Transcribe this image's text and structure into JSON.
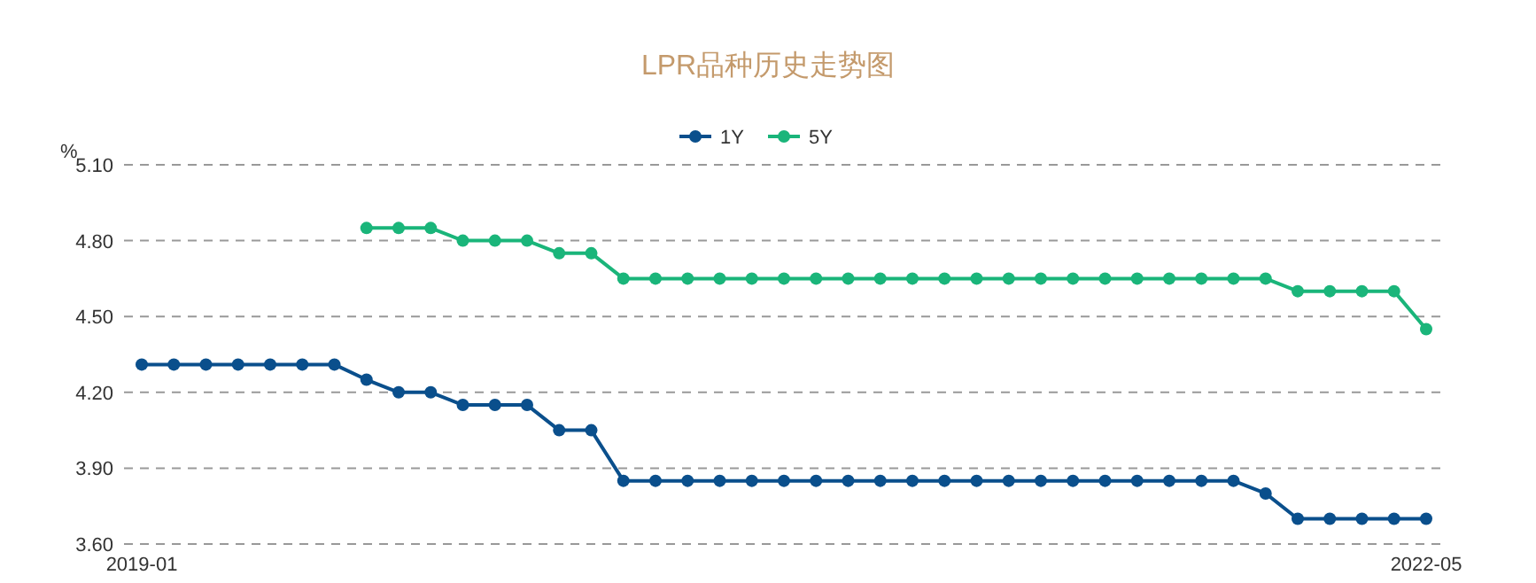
{
  "chart_data": {
    "type": "line",
    "title": "LPR品种历史走势图",
    "ylabel": "%",
    "categories": [
      "2019-01",
      null,
      null,
      null,
      null,
      null,
      null,
      null,
      null,
      null,
      null,
      null,
      null,
      null,
      null,
      null,
      null,
      null,
      null,
      null,
      null,
      null,
      null,
      null,
      null,
      null,
      null,
      null,
      null,
      null,
      null,
      null,
      null,
      null,
      null,
      null,
      null,
      null,
      null,
      null,
      "2022-05"
    ],
    "series": [
      {
        "name": "1Y",
        "color": "#0a4f8c",
        "values": [
          4.31,
          4.31,
          4.31,
          4.31,
          4.31,
          4.31,
          4.31,
          4.25,
          4.2,
          4.2,
          4.15,
          4.15,
          4.15,
          4.05,
          4.05,
          3.85,
          3.85,
          3.85,
          3.85,
          3.85,
          3.85,
          3.85,
          3.85,
          3.85,
          3.85,
          3.85,
          3.85,
          3.85,
          3.85,
          3.85,
          3.85,
          3.85,
          3.85,
          3.85,
          3.85,
          3.8,
          3.7,
          3.7,
          3.7,
          3.7,
          3.7
        ]
      },
      {
        "name": "5Y",
        "color": "#1ab57a",
        "values": [
          null,
          null,
          null,
          null,
          null,
          null,
          null,
          4.85,
          4.85,
          4.85,
          4.8,
          4.8,
          4.8,
          4.75,
          4.75,
          4.65,
          4.65,
          4.65,
          4.65,
          4.65,
          4.65,
          4.65,
          4.65,
          4.65,
          4.65,
          4.65,
          4.65,
          4.65,
          4.65,
          4.65,
          4.65,
          4.65,
          4.65,
          4.65,
          4.65,
          4.65,
          4.6,
          4.6,
          4.6,
          4.6,
          4.45
        ]
      }
    ],
    "ylim": [
      3.6,
      5.1
    ],
    "yticks": [
      {
        "value": 3.6,
        "label": "3.60"
      },
      {
        "value": 3.9,
        "label": "3.90"
      },
      {
        "value": 4.2,
        "label": "4.20"
      },
      {
        "value": 4.5,
        "label": "4.50"
      },
      {
        "value": 4.8,
        "label": "4.80"
      },
      {
        "value": 5.1,
        "label": "5.10"
      }
    ],
    "grid": "y",
    "legend": "top",
    "marker": "circle",
    "line_style": "solid"
  }
}
